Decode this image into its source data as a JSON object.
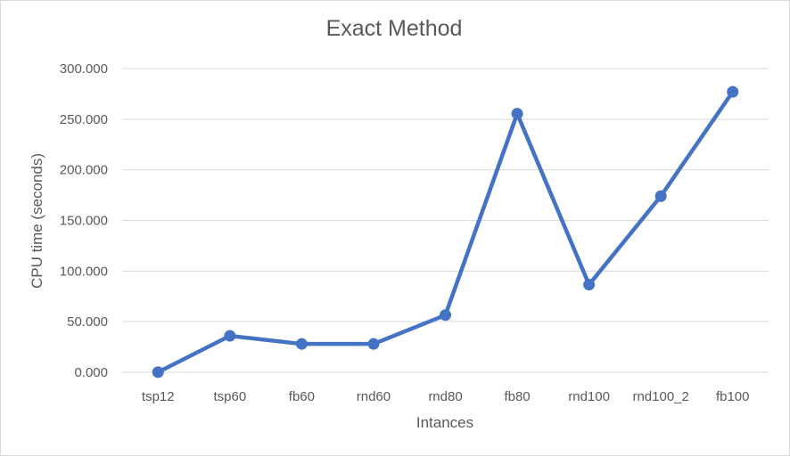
{
  "chart_data": {
    "type": "line",
    "title": "Exact Method",
    "xlabel": "Intances",
    "ylabel": "CPU time (seconds)",
    "categories": [
      "tsp12",
      "tsp60",
      "fb60",
      "rnd60",
      "rnd80",
      "fb80",
      "rnd100",
      "rnd100_2",
      "fb100"
    ],
    "values": [
      0.1,
      36,
      28,
      28,
      56.5,
      255.5,
      86.5,
      174,
      277
    ],
    "ylim": [
      0,
      300
    ],
    "yticks": [
      0,
      50,
      100,
      150,
      200,
      250,
      300
    ],
    "ytick_labels": [
      "0.000",
      "50.000",
      "100.000",
      "150.000",
      "200.000",
      "250.000",
      "300.000"
    ],
    "grid": true,
    "legend": "none",
    "colors": {
      "line": "#4472C4",
      "grid": "#d9d9d9",
      "text": "#595959"
    }
  }
}
